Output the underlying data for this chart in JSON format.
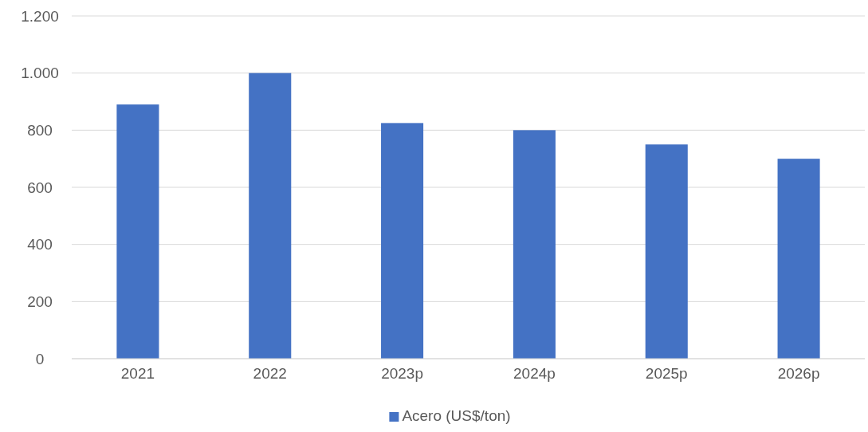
{
  "chart_data": {
    "type": "bar",
    "categories": [
      "2021",
      "2022",
      "2023p",
      "2024p",
      "2025p",
      "2026p"
    ],
    "series": [
      {
        "name": "Acero (US$/ton)",
        "color": "#4472c4",
        "values": [
          890,
          1000,
          825,
          800,
          750,
          700
        ]
      }
    ],
    "ylim": [
      0,
      1200
    ],
    "yticks": [
      0,
      200,
      400,
      600,
      800,
      {
        "value": 1000,
        "label": "1.000"
      },
      {
        "value": 1200,
        "label": "1.200"
      }
    ],
    "grid": "y",
    "legend": "bottom"
  }
}
